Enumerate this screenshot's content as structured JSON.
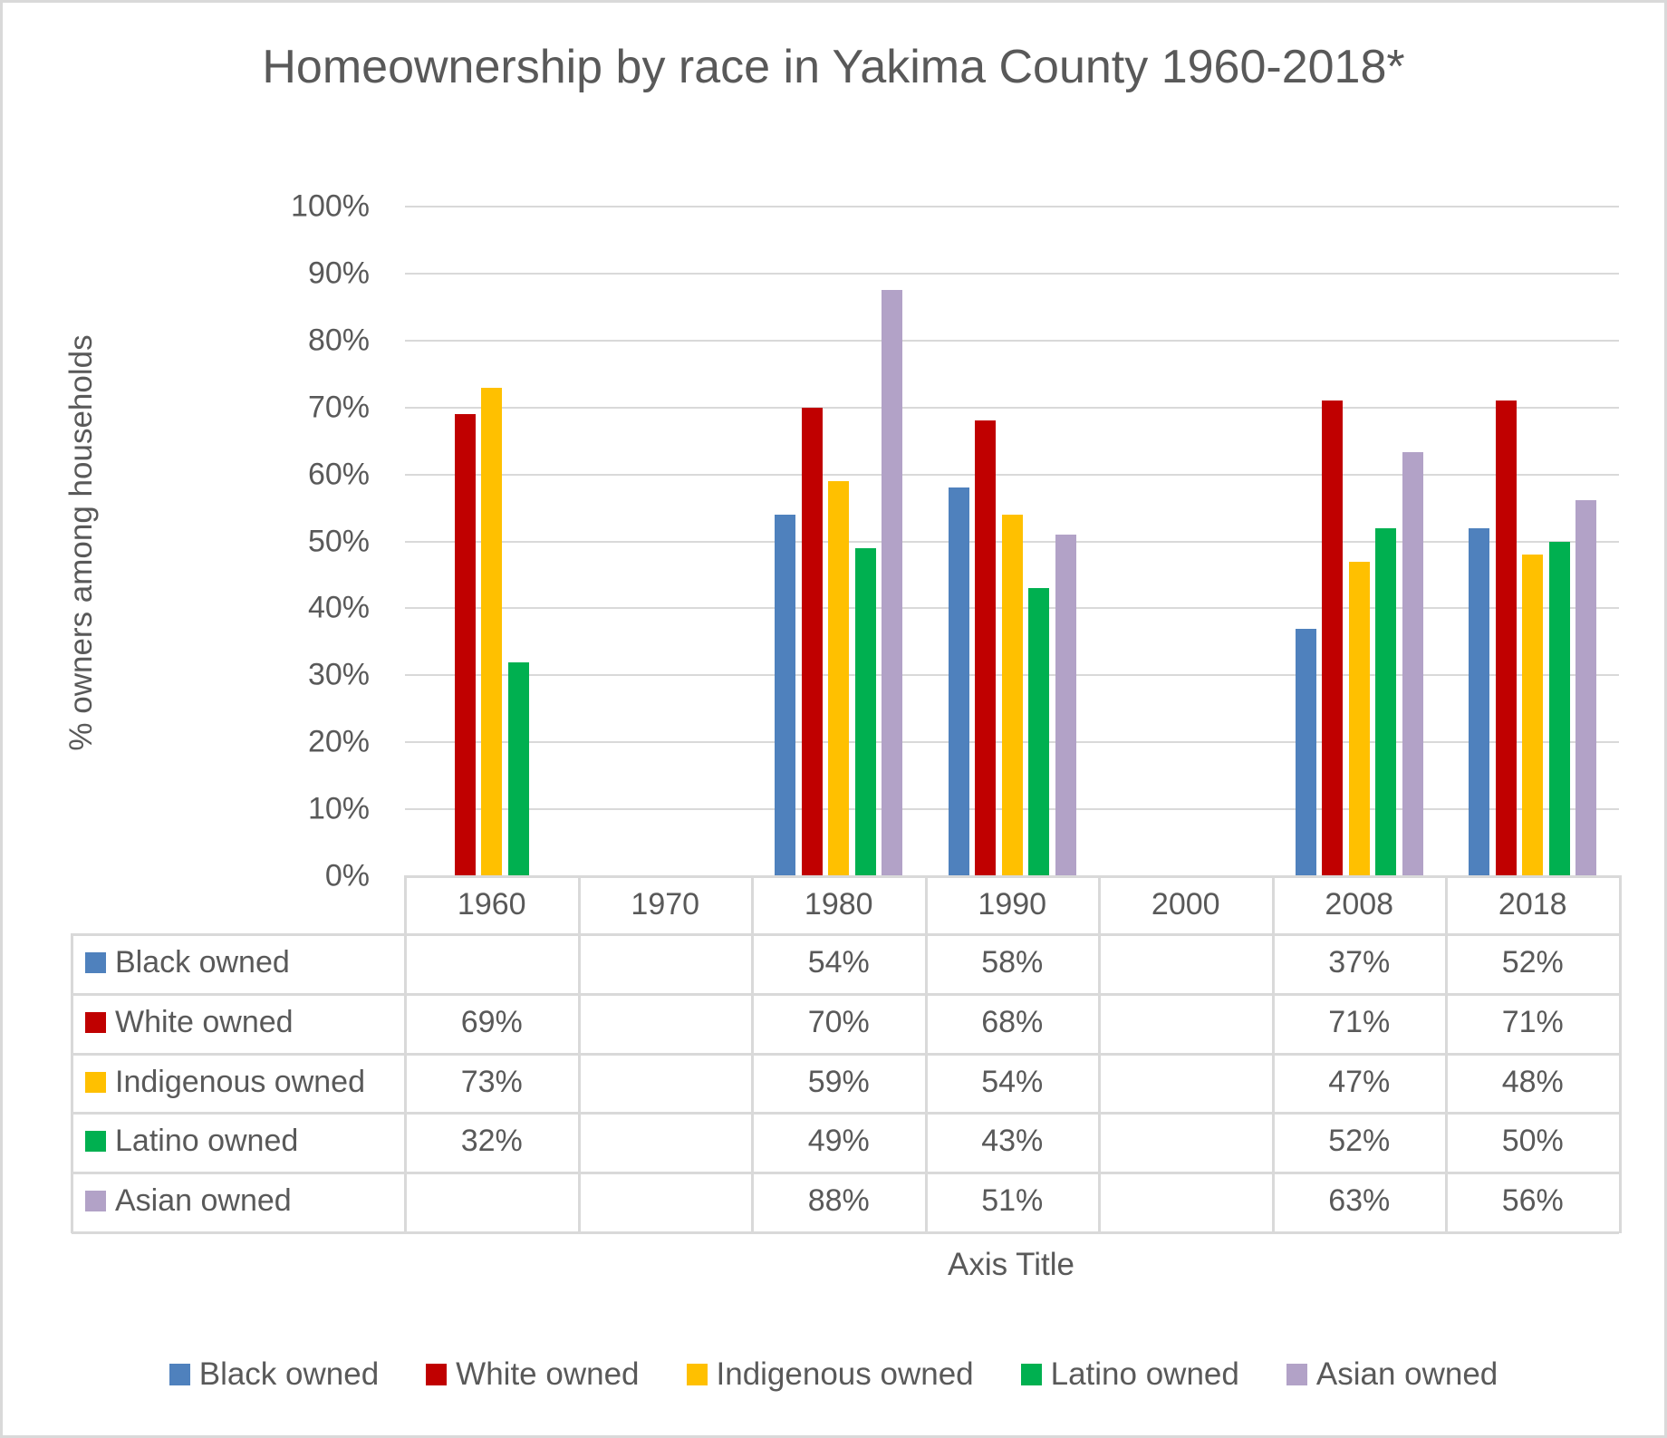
{
  "chart_data": {
    "type": "bar",
    "title": "Homeownership by race in Yakima County 1960-2018*",
    "xlabel": "Axis Title",
    "ylabel": "% owners among households",
    "ylim": [
      0,
      1
    ],
    "y_ticks": [
      "0%",
      "10%",
      "20%",
      "30%",
      "40%",
      "50%",
      "60%",
      "70%",
      "80%",
      "90%",
      "100%"
    ],
    "grid": true,
    "legend_position": "bottom",
    "data_table": true,
    "categories": [
      "1960",
      "1970",
      "1980",
      "1990",
      "2000",
      "2008",
      "2018"
    ],
    "series": [
      {
        "name": "Black owned",
        "color": "#4f81bd",
        "values": [
          null,
          null,
          0.54,
          0.58,
          null,
          0.37,
          0.52
        ],
        "labels": [
          "",
          "",
          "54%",
          "58%",
          "",
          "37%",
          "52%"
        ]
      },
      {
        "name": "White owned",
        "color": "#c00000",
        "values": [
          0.69,
          null,
          0.7,
          0.68,
          null,
          0.71,
          0.71
        ],
        "labels": [
          "69%",
          "",
          "70%",
          "68%",
          "",
          "71%",
          "71%"
        ]
      },
      {
        "name": "Indigenous owned",
        "color": "#ffc000",
        "values": [
          0.73,
          null,
          0.59,
          0.54,
          null,
          0.47,
          0.48
        ],
        "labels": [
          "73%",
          "",
          "59%",
          "54%",
          "",
          "47%",
          "48%"
        ]
      },
      {
        "name": "Latino owned",
        "color": "#00b050",
        "values": [
          0.32,
          null,
          0.49,
          0.43,
          null,
          0.52,
          0.5
        ],
        "labels": [
          "32%",
          "",
          "49%",
          "43%",
          "",
          "52%",
          "50%"
        ]
      },
      {
        "name": "Asian owned",
        "color": "#b2a2c7",
        "values": [
          null,
          null,
          0.875,
          0.51,
          null,
          0.633,
          0.562
        ],
        "labels": [
          "",
          "",
          "88%",
          "51%",
          "",
          "63%",
          "56%"
        ]
      }
    ]
  },
  "colors": {
    "text": "#595959",
    "grid": "#d9d9d9",
    "border": "#d9d9d9",
    "background": "#ffffff"
  }
}
